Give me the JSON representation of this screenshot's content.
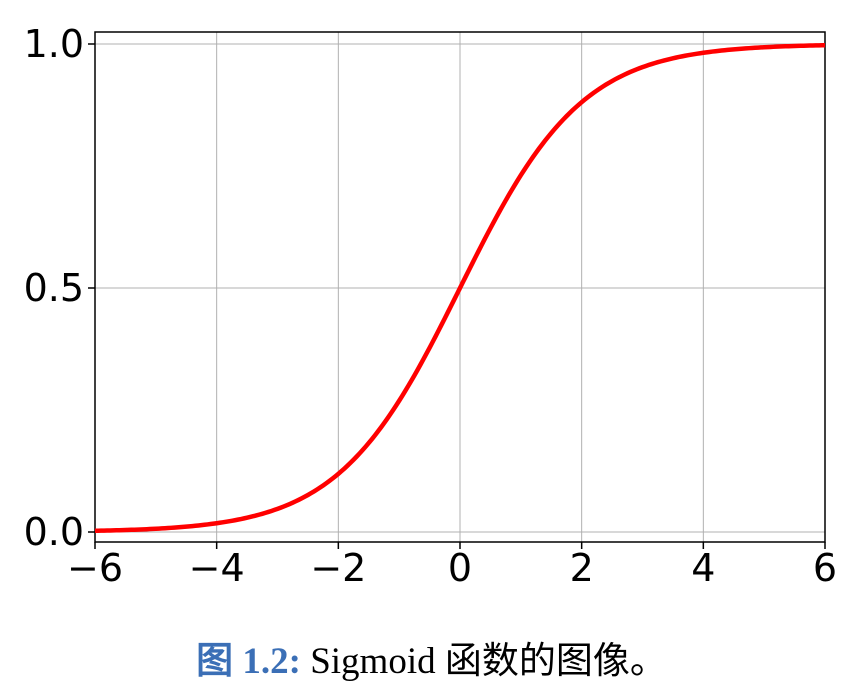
{
  "chart_data": {
    "type": "line",
    "title": "",
    "xlabel": "",
    "ylabel": "",
    "xlim": [
      -6,
      6
    ],
    "ylim": [
      0,
      1
    ],
    "xticks": [
      -6,
      -4,
      -2,
      0,
      2,
      4,
      6
    ],
    "xtick_labels": [
      "−6",
      "−4",
      "−2",
      "0",
      "2",
      "4",
      "6"
    ],
    "yticks": [
      0.0,
      0.5,
      1.0
    ],
    "ytick_labels": [
      "0.0",
      "0.5",
      "1.0"
    ],
    "grid": true,
    "legend": "none",
    "series": [
      {
        "color": "#ff0000",
        "function": "sigmoid",
        "x": [
          -6,
          -5,
          -4,
          -3,
          -2,
          -1,
          0,
          1,
          2,
          3,
          4,
          5,
          6
        ],
        "y": [
          0.0025,
          0.0067,
          0.018,
          0.047,
          0.119,
          0.269,
          0.5,
          0.731,
          0.881,
          0.953,
          0.982,
          0.993,
          0.9975
        ]
      }
    ]
  },
  "caption": {
    "label": "图 1.2:",
    "text": "Sigmoid 函数的图像。"
  }
}
